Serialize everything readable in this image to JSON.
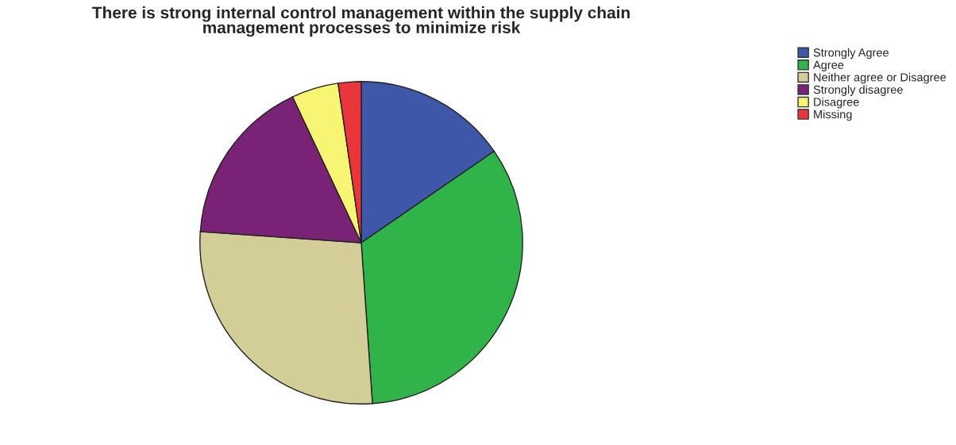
{
  "chart_data": {
    "type": "pie",
    "title": "There is strong internal control management within the supply chain\nmanagement processes to minimize risk",
    "categories": [
      "Strongly Agree",
      "Agree",
      "Neither agree or Disagree",
      "Strongly disagree",
      "Disagree",
      "Missing"
    ],
    "values": [
      15.4,
      33.5,
      27.2,
      16.9,
      4.7,
      2.3
    ],
    "colors": [
      "#3f57a8",
      "#30b44a",
      "#d3cd98",
      "#7a2376",
      "#f8f574",
      "#e8363c"
    ],
    "legend": "top right"
  }
}
